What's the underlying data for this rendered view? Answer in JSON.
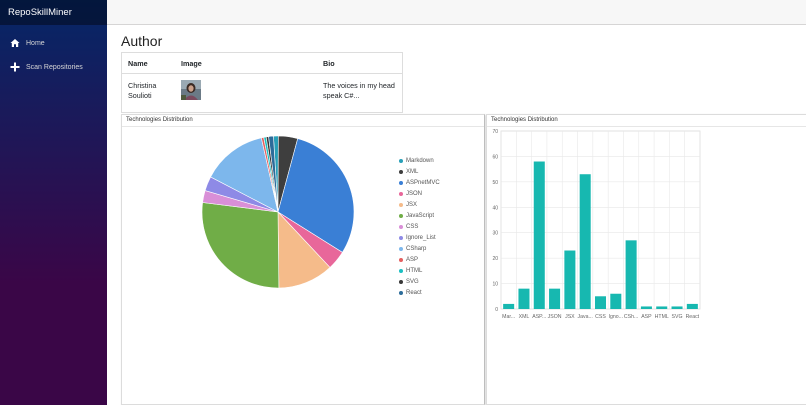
{
  "app": {
    "brand": "RepoSkillMiner"
  },
  "sidebar": {
    "items": [
      {
        "label": "Home",
        "icon": "home-icon"
      },
      {
        "label": "Scan Repositories",
        "icon": "plus-icon"
      }
    ]
  },
  "page": {
    "title": "Author"
  },
  "author_table": {
    "headers": [
      "Name",
      "Image",
      "Bio"
    ],
    "row": {
      "name_line1": "Christina",
      "name_line2": "Soulioti",
      "bio_line1": "The voices in my head",
      "bio_line2": "speak C#..."
    }
  },
  "colors": {
    "Markdown": "#28a0b8",
    "XML": "#3e3e3e",
    "ASPnetMVC": "#3a7fd5",
    "JSON": "#e8679a",
    "JSX": "#f5bb8a",
    "JavaScript": "#70ad47",
    "CSS": "#d98fd7",
    "Ignore_List": "#8e8ae6",
    "CSharp": "#7db7ec",
    "ASP": "#e45f5f",
    "HTML": "#1bbfc2",
    "SVG": "#383838",
    "React": "#2c6c9a",
    "bar": "#17b8b0"
  },
  "chart_data": [
    {
      "type": "pie",
      "title": "Technologies Distribution",
      "categories": [
        "Markdown",
        "XML",
        "ASPnetMVC",
        "JSON",
        "JSX",
        "JavaScript",
        "CSS",
        "Ignore_List",
        "CSharp",
        "ASP",
        "HTML",
        "SVG",
        "React"
      ],
      "values": [
        2,
        8,
        58,
        8,
        23,
        53,
        5,
        6,
        27,
        1,
        1,
        1,
        2
      ]
    },
    {
      "type": "bar",
      "title": "Technologies Distribution",
      "categories": [
        "Markdown",
        "XML",
        "ASPnetMVC",
        "JSON",
        "JSX",
        "JavaScript",
        "CSS",
        "Ignore_List",
        "CSharp",
        "ASP",
        "HTML",
        "SVG",
        "React"
      ],
      "tick_labels": [
        "Mar...",
        "XML",
        "ASP...",
        "JSON",
        "JSX",
        "Java...",
        "CSS",
        "Igno...",
        "CSh...",
        "ASP",
        "HTML",
        "SVG",
        "React"
      ],
      "values": [
        2,
        8,
        58,
        8,
        23,
        53,
        5,
        6,
        27,
        1,
        1,
        1,
        2
      ],
      "ylim": [
        0,
        70
      ],
      "yticks": [
        0,
        10,
        20,
        30,
        40,
        50,
        60,
        70
      ],
      "grid": true
    }
  ]
}
